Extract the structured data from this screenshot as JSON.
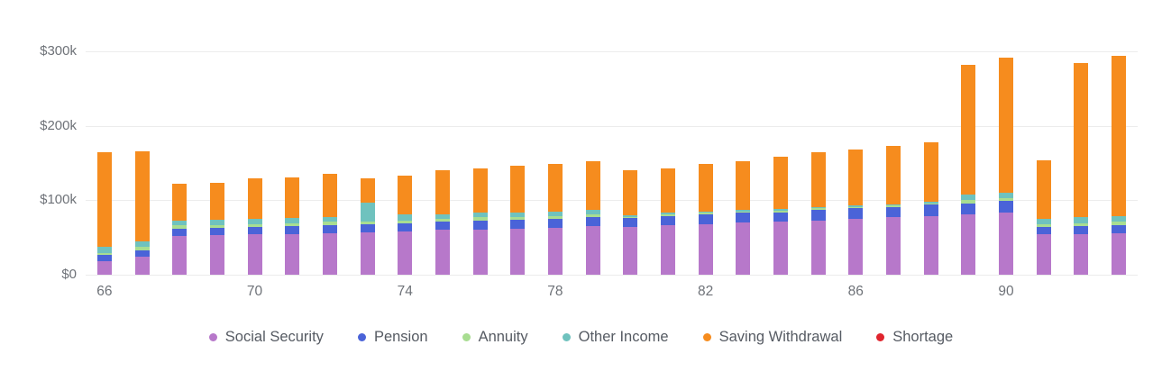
{
  "chart_data": {
    "type": "bar",
    "stacked": true,
    "title": "",
    "xlabel": "",
    "ylabel": "",
    "grid": true,
    "legend_position": "bottom",
    "ylim": [
      0,
      300000
    ],
    "y_ticks": [
      {
        "value": 0,
        "label": "$0"
      },
      {
        "value": 100000,
        "label": "$100k"
      },
      {
        "value": 200000,
        "label": "$200k"
      },
      {
        "value": 300000,
        "label": "$300k"
      }
    ],
    "x": [
      66,
      67,
      68,
      69,
      70,
      71,
      72,
      73,
      74,
      75,
      76,
      77,
      78,
      79,
      80,
      81,
      82,
      83,
      84,
      85,
      86,
      87,
      88,
      89,
      90,
      91,
      92,
      93
    ],
    "x_tick_values": [
      66,
      70,
      74,
      78,
      82,
      86,
      90
    ],
    "x_tick_labels": [
      "66",
      "70",
      "74",
      "78",
      "82",
      "86",
      "90"
    ],
    "series": [
      {
        "name": "Social Security",
        "color": "#b778ca",
        "values": [
          18000,
          24000,
          52000,
          53000,
          54000,
          55000,
          56000,
          57000,
          58000,
          60000,
          61000,
          62000,
          63000,
          65000,
          64000,
          66000,
          68000,
          70000,
          71000,
          73000,
          75000,
          77000,
          79000,
          81000,
          83000,
          54000,
          55000,
          56000
        ]
      },
      {
        "name": "Pension",
        "color": "#4a63d8",
        "values": [
          9000,
          9000,
          10000,
          10000,
          10000,
          10000,
          11000,
          11000,
          11000,
          11000,
          12000,
          12000,
          12000,
          12000,
          12000,
          13000,
          13000,
          13000,
          13000,
          14000,
          14000,
          14000,
          15000,
          15000,
          16000,
          10000,
          10000,
          11000
        ]
      },
      {
        "name": "Annuity",
        "color": "#a8dd91",
        "values": [
          2000,
          4000,
          4000,
          4000,
          4000,
          4000,
          4000,
          4000,
          4000,
          4000,
          4000,
          4000,
          4000,
          4000,
          2000,
          2000,
          2000,
          2000,
          2000,
          2000,
          2000,
          2000,
          2000,
          4000,
          4000,
          4000,
          4000,
          4000
        ]
      },
      {
        "name": "Other Income",
        "color": "#6fc2be",
        "values": [
          8000,
          8000,
          7000,
          7000,
          7000,
          7000,
          7000,
          25000,
          8000,
          6000,
          6000,
          6000,
          6000,
          6000,
          2000,
          2000,
          2000,
          2000,
          2000,
          2000,
          2000,
          2000,
          2000,
          8000,
          7000,
          7000,
          8000,
          8000
        ]
      },
      {
        "name": "Saving Withdrawal",
        "color": "#f68c1e",
        "values": [
          128000,
          121000,
          49000,
          50000,
          54000,
          55000,
          57000,
          32000,
          52000,
          59000,
          60000,
          62000,
          64000,
          66000,
          60000,
          60000,
          64000,
          66000,
          70000,
          73000,
          75000,
          78000,
          80000,
          174000,
          181000,
          79000,
          207000,
          215000
        ]
      },
      {
        "name": "Shortage",
        "color": "#e0252e",
        "values": [
          0,
          0,
          0,
          0,
          0,
          0,
          0,
          0,
          0,
          0,
          0,
          0,
          0,
          0,
          0,
          0,
          0,
          0,
          0,
          0,
          0,
          0,
          0,
          0,
          0,
          0,
          0,
          0
        ]
      }
    ]
  },
  "colors": {
    "background": "#ffffff",
    "gridline": "#ececec",
    "axis_text": "#6e7278",
    "legend_text": "#565b63"
  }
}
